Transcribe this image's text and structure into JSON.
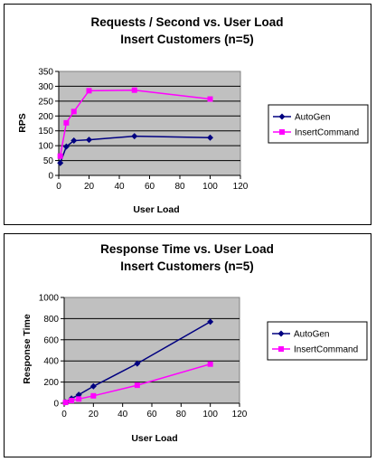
{
  "chart_data": [
    {
      "type": "line",
      "title": "Requests / Second  vs.  User Load",
      "subtitle": "Insert Customers (n=5)",
      "xlabel": "User Load",
      "ylabel": "RPS",
      "xlim": [
        0,
        120
      ],
      "ylim": [
        0,
        350
      ],
      "x_ticks": [
        "0",
        "20",
        "40",
        "60",
        "80",
        "100",
        "120"
      ],
      "y_ticks": [
        "0",
        "50",
        "100",
        "150",
        "200",
        "250",
        "300",
        "350"
      ],
      "grid": "horizontal",
      "legend": "right",
      "plot_background": "#c0c0c0",
      "series": [
        {
          "name": "AutoGen",
          "color": "#000080",
          "marker": "diamond",
          "x": [
            1,
            5,
            10,
            20,
            50,
            100
          ],
          "y": [
            42,
            97,
            117,
            120,
            132,
            127
          ]
        },
        {
          "name": "InsertCommand",
          "color": "#ff00ff",
          "marker": "square",
          "x": [
            1,
            5,
            10,
            20,
            50,
            100
          ],
          "y": [
            65,
            177,
            215,
            285,
            287,
            257
          ]
        }
      ]
    },
    {
      "type": "line",
      "title": "Response Time  vs.  User Load",
      "subtitle": "Insert Customers (n=5)",
      "xlabel": "User Load",
      "ylabel": "Response Time",
      "xlim": [
        0,
        120
      ],
      "ylim": [
        0,
        1000
      ],
      "x_ticks": [
        "0",
        "20",
        "40",
        "60",
        "80",
        "100",
        "120"
      ],
      "y_ticks": [
        "0",
        "200",
        "400",
        "600",
        "800",
        "1000"
      ],
      "grid": "horizontal",
      "legend": "right",
      "plot_background": "#c0c0c0",
      "series": [
        {
          "name": "AutoGen",
          "color": "#000080",
          "marker": "diamond",
          "x": [
            1,
            5,
            10,
            20,
            50,
            100
          ],
          "y": [
            10,
            45,
            80,
            160,
            375,
            770
          ]
        },
        {
          "name": "InsertCommand",
          "color": "#ff00ff",
          "marker": "square",
          "x": [
            1,
            5,
            10,
            20,
            50,
            100
          ],
          "y": [
            8,
            25,
            40,
            70,
            170,
            370
          ]
        }
      ]
    }
  ]
}
